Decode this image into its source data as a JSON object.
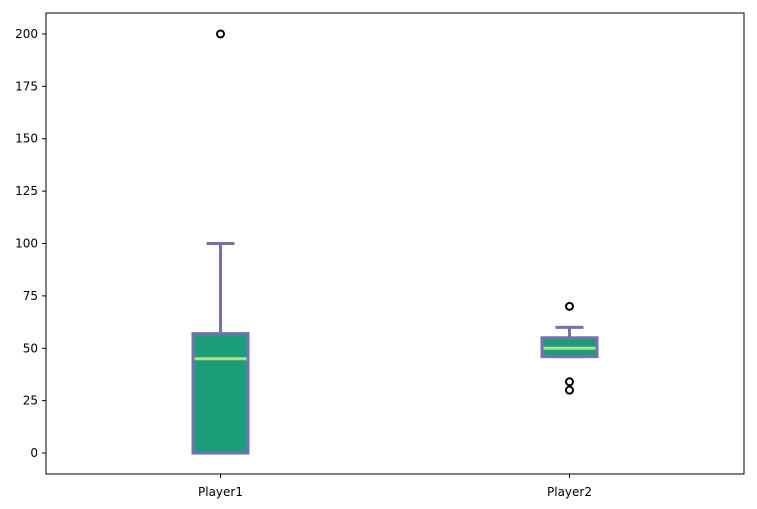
{
  "chart_data": {
    "type": "box",
    "categories": [
      "Player1",
      "Player2"
    ],
    "boxes": [
      {
        "name": "Player1",
        "whislo": 0,
        "q1": 0,
        "median": 45,
        "q3": 57,
        "whishi": 100,
        "fliers": [
          200
        ]
      },
      {
        "name": "Player2",
        "whislo": 46,
        "q1": 46,
        "median": 50,
        "q3": 55,
        "whishi": 60,
        "fliers": [
          70,
          34,
          30
        ]
      }
    ],
    "yticks": [
      0,
      25,
      50,
      75,
      100,
      125,
      150,
      175,
      200
    ],
    "ylim": [
      -10,
      210
    ],
    "grid": false,
    "title": "",
    "xlabel": "",
    "ylabel": "",
    "colors": {
      "box_fill": "#1b9e77",
      "box_edge": "#7570b3",
      "median": "#b2df8a",
      "whisker": "#7570b3",
      "cap": "#7570b3",
      "flier": "#000000"
    }
  }
}
